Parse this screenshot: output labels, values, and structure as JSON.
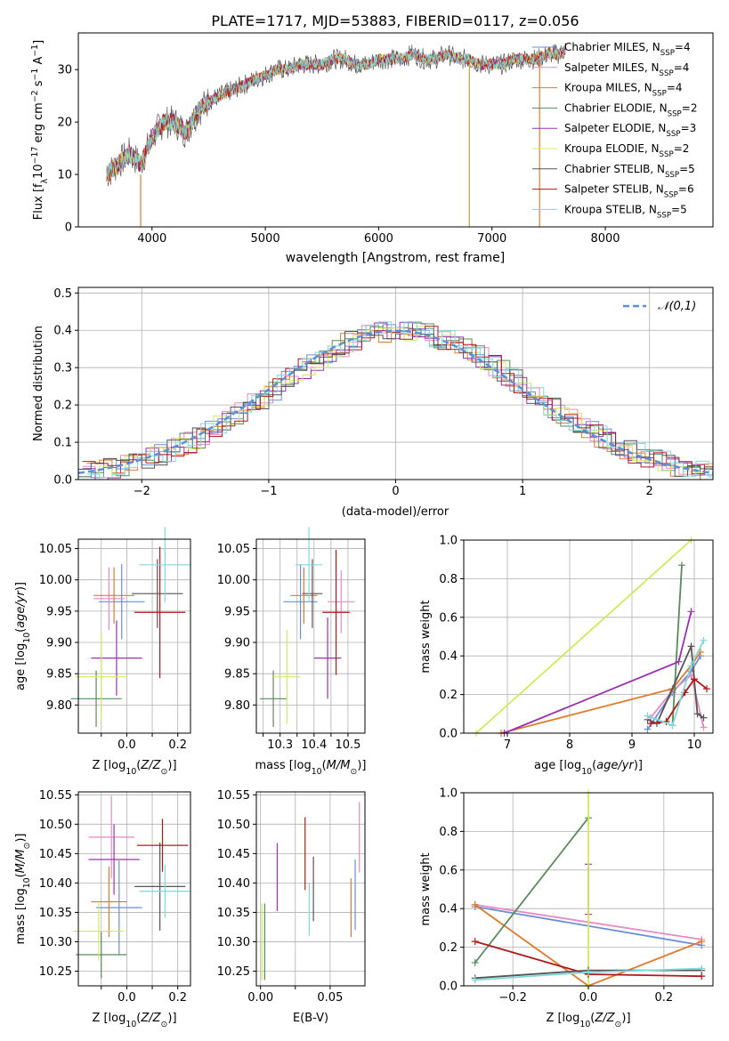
{
  "figure_title": "PLATE=1717, MJD=53883, FIBERID=0117, z=0.056",
  "legend": [
    {
      "label": "Chabrier MILES, N_SSP=4",
      "base": "Chabrier MILES, N",
      "sub": "SSP",
      "suffix": "=4",
      "color": "#6a8ed8"
    },
    {
      "label": "Salpeter MILES, N_SSP=4",
      "base": "Salpeter MILES, N",
      "sub": "SSP",
      "suffix": "=4",
      "color": "#e58ac2"
    },
    {
      "label": "Kroupa MILES, N_SSP=4",
      "base": "Kroupa MILES, N",
      "sub": "SSP",
      "suffix": "=4",
      "color": "#e07a2e"
    },
    {
      "label": "Chabrier ELODIE, N_SSP=2",
      "base": "Chabrier ELODIE, N",
      "sub": "SSP",
      "suffix": "=2",
      "color": "#5a8a5a"
    },
    {
      "label": "Salpeter ELODIE, N_SSP=3",
      "base": "Salpeter ELODIE, N",
      "sub": "SSP",
      "suffix": "=3",
      "color": "#9b30b0"
    },
    {
      "label": "Kroupa ELODIE, N_SSP=2",
      "base": "Kroupa ELODIE, N",
      "sub": "SSP",
      "suffix": "=2",
      "color": "#d4e85a"
    },
    {
      "label": "Chabrier STELIB, N_SSP=5",
      "base": "Chabrier STELIB, N",
      "sub": "SSP",
      "suffix": "=5",
      "color": "#555555"
    },
    {
      "label": "Salpeter STELIB, N_SSP=6",
      "base": "Salpeter STELIB, N",
      "sub": "SSP",
      "suffix": "=6",
      "color": "#b01818"
    },
    {
      "label": "Kroupa STELIB, N_SSP=5",
      "base": "Kroupa STELIB, N",
      "sub": "SSP",
      "suffix": "=5",
      "color": "#7fd8dc"
    }
  ],
  "chart_data": [
    {
      "id": "spectrum",
      "type": "line",
      "xlabel": "wavelength [Angstrom, rest frame]",
      "ylabel": "Flux [f_λ 10^-17 erg cm^-2 s^-1 A^-1]",
      "xlim": [
        3350,
        8950
      ],
      "ylim": [
        0,
        37
      ],
      "xticks": [
        4000,
        5000,
        6000,
        7000,
        8000
      ],
      "yticks": [
        0,
        10,
        20,
        30
      ],
      "grid": false,
      "legend_position": "lower right",
      "continuum_x": [
        3600,
        3700,
        3800,
        3900,
        4000,
        4100,
        4200,
        4300,
        4400,
        4500,
        4600,
        4700,
        4800,
        4900,
        5000,
        5100,
        5200,
        5300,
        5400,
        5500,
        5600,
        5700,
        5800,
        5900,
        6000,
        6100,
        6200,
        6300,
        6400,
        6500,
        6600,
        6700,
        6800,
        6900,
        7000,
        7100,
        7200,
        7300,
        7400,
        7500,
        7600,
        7650
      ],
      "continuum_y": [
        10,
        12,
        14,
        12,
        17,
        20,
        20,
        18,
        22,
        24,
        25,
        26,
        27,
        28,
        29,
        30,
        30,
        31,
        31,
        31,
        32,
        32,
        31,
        31,
        32,
        32,
        32,
        33,
        32,
        32,
        33,
        32,
        32,
        31,
        31,
        31,
        32,
        32,
        32,
        33,
        33,
        34
      ],
      "drop_lines": [
        {
          "x": 3900,
          "y0": 0,
          "y1": 10
        },
        {
          "x": 6800,
          "y0": 0,
          "y1": 32
        },
        {
          "x": 7420,
          "y0": 0,
          "y1": 32
        }
      ]
    },
    {
      "id": "residuals",
      "type": "histogram",
      "xlabel": "(data-model)/error",
      "ylabel": "Normed distribution",
      "xlim": [
        -2.5,
        2.5
      ],
      "ylim": [
        0,
        0.515
      ],
      "xticks": [
        -2,
        -1,
        0,
        1,
        2
      ],
      "yticks": [
        0.0,
        0.1,
        0.2,
        0.3,
        0.4,
        0.5
      ],
      "grid": true,
      "reference": {
        "name": "𝒩(0,1)",
        "mean": 0,
        "sigma": 1
      }
    },
    {
      "id": "age_vs_Z",
      "type": "scatter",
      "xlabel": "Z [log10(Z/Z⊙)]",
      "ylabel": "age [log10(age/yr)]",
      "xlim": [
        -0.19,
        0.25
      ],
      "ylim": [
        9.755,
        10.065
      ],
      "xticks": [
        -0.1,
        0.0,
        0.1,
        0.2
      ],
      "xticklabels": [
        "",
        "0.0",
        "",
        "0.2"
      ],
      "yticks": [
        9.8,
        9.85,
        9.9,
        9.95,
        10.0,
        10.05
      ],
      "grid": true,
      "points": [
        {
          "series": "Chabrier MILES",
          "x": -0.02,
          "xerr": 0.09,
          "y": 9.965,
          "yerr": 0.06
        },
        {
          "series": "Salpeter MILES",
          "x": -0.07,
          "xerr": 0.06,
          "y": 9.97,
          "yerr": 0.05
        },
        {
          "series": "Kroupa MILES",
          "x": -0.05,
          "xerr": 0.08,
          "y": 9.975,
          "yerr": 0.045
        },
        {
          "series": "Chabrier ELODIE",
          "x": -0.12,
          "xerr": 0.1,
          "y": 9.81,
          "yerr": 0.045
        },
        {
          "series": "Salpeter ELODIE",
          "x": -0.04,
          "xerr": 0.1,
          "y": 9.875,
          "yerr": 0.06
        },
        {
          "series": "Kroupa ELODIE",
          "x": -0.1,
          "xerr": 0.1,
          "y": 9.845,
          "yerr": 0.07
        },
        {
          "series": "Chabrier STELIB",
          "x": 0.12,
          "xerr": 0.1,
          "y": 9.978,
          "yerr": 0.055
        },
        {
          "series": "Salpeter STELIB",
          "x": 0.13,
          "xerr": 0.1,
          "y": 9.948,
          "yerr": 0.105
        },
        {
          "series": "Kroupa STELIB",
          "x": 0.15,
          "xerr": 0.1,
          "y": 10.024,
          "yerr": 0.06
        }
      ]
    },
    {
      "id": "age_vs_mass",
      "type": "scatter",
      "xlabel": "mass [log10(M/M⊙)]",
      "ylabel": "",
      "xlim": [
        10.23,
        10.55
      ],
      "ylim": [
        9.755,
        10.065
      ],
      "xticks": [
        10.25,
        10.3,
        10.35,
        10.4,
        10.45,
        10.5
      ],
      "xticklabels": [
        "",
        "10.3",
        "",
        "10.4",
        "",
        "10.5"
      ],
      "yticks": [
        9.8,
        9.85,
        9.9,
        9.95,
        10.0,
        10.05
      ],
      "grid": true,
      "points": [
        {
          "series": "Chabrier MILES",
          "x": 10.36,
          "xerr": 0.05,
          "y": 9.965,
          "yerr": 0.06
        },
        {
          "series": "Salpeter MILES",
          "x": 10.48,
          "xerr": 0.04,
          "y": 9.965,
          "yerr": 0.05
        },
        {
          "series": "Kroupa MILES",
          "x": 10.37,
          "xerr": 0.04,
          "y": 9.975,
          "yerr": 0.045
        },
        {
          "series": "Chabrier ELODIE",
          "x": 10.28,
          "xerr": 0.04,
          "y": 9.81,
          "yerr": 0.045
        },
        {
          "series": "Salpeter ELODIE",
          "x": 10.44,
          "xerr": 0.04,
          "y": 9.875,
          "yerr": 0.065
        },
        {
          "series": "Kroupa ELODIE",
          "x": 10.32,
          "xerr": 0.04,
          "y": 9.845,
          "yerr": 0.075
        },
        {
          "series": "Chabrier STELIB",
          "x": 10.395,
          "xerr": 0.03,
          "y": 9.978,
          "yerr": 0.055
        },
        {
          "series": "Salpeter STELIB",
          "x": 10.465,
          "xerr": 0.04,
          "y": 9.948,
          "yerr": 0.1
        },
        {
          "series": "Kroupa STELIB",
          "x": 10.385,
          "xerr": 0.04,
          "y": 10.024,
          "yerr": 0.06
        }
      ]
    },
    {
      "id": "weight_vs_age",
      "type": "line",
      "xlabel": "age [log10(age/yr)]",
      "ylabel": "mass weight",
      "xlim": [
        6.3,
        10.3
      ],
      "ylim": [
        0,
        1
      ],
      "xticks": [
        7,
        8,
        9,
        10
      ],
      "yticks": [
        0.0,
        0.2,
        0.4,
        0.6,
        0.8,
        1.0
      ],
      "grid": true,
      "series": [
        {
          "name": "Chabrier MILES",
          "x": [
            9.25,
            9.65,
            9.95,
            10.1
          ],
          "y": [
            0.02,
            0.21,
            0.32,
            0.4
          ]
        },
        {
          "name": "Salpeter MILES",
          "x": [
            9.3,
            9.65,
            9.95,
            10.15
          ],
          "y": [
            0.08,
            0.22,
            0.3,
            0.03
          ]
        },
        {
          "name": "Kroupa MILES",
          "x": [
            6.9,
            9.65,
            9.95,
            10.1
          ],
          "y": [
            0.0,
            0.23,
            0.35,
            0.42
          ]
        },
        {
          "name": "Chabrier ELODIE",
          "x": [
            9.65,
            9.8
          ],
          "y": [
            0.04,
            0.87
          ]
        },
        {
          "name": "Salpeter ELODIE",
          "x": [
            6.95,
            9.75,
            9.95
          ],
          "y": [
            0.0,
            0.37,
            0.63
          ]
        },
        {
          "name": "Kroupa ELODIE",
          "x": [
            6.5,
            9.95
          ],
          "y": [
            0.0,
            1.0
          ]
        },
        {
          "name": "Chabrier STELIB",
          "x": [
            9.25,
            9.4,
            9.95,
            10.05,
            10.15
          ],
          "y": [
            0.07,
            0.05,
            0.45,
            0.1,
            0.08
          ]
        },
        {
          "name": "Salpeter STELIB",
          "x": [
            9.3,
            9.55,
            9.85,
            10.0,
            10.2
          ],
          "y": [
            0.05,
            0.06,
            0.21,
            0.28,
            0.23
          ]
        },
        {
          "name": "Kroupa STELIB",
          "x": [
            9.25,
            9.65,
            9.95,
            10.15
          ],
          "y": [
            0.09,
            0.04,
            0.35,
            0.48
          ]
        }
      ]
    },
    {
      "id": "mass_vs_Z",
      "type": "scatter",
      "xlabel": "Z [log10(Z/Z⊙)]",
      "ylabel": "mass [log10(M/M⊙)]",
      "xlim": [
        -0.19,
        0.25
      ],
      "ylim": [
        10.225,
        10.555
      ],
      "xticks": [
        -0.1,
        0.0,
        0.1,
        0.2
      ],
      "xticklabels": [
        "",
        "0.0",
        "",
        "0.2"
      ],
      "yticks": [
        10.25,
        10.3,
        10.35,
        10.4,
        10.45,
        10.5,
        10.55
      ],
      "grid": true,
      "points": [
        {
          "series": "Chabrier MILES",
          "x": -0.03,
          "xerr": 0.09,
          "y": 10.358,
          "yerr": 0.08
        },
        {
          "series": "Salpeter MILES",
          "x": -0.06,
          "xerr": 0.09,
          "y": 10.478,
          "yerr": 0.07
        },
        {
          "series": "Kroupa MILES",
          "x": -0.07,
          "xerr": 0.07,
          "y": 10.368,
          "yerr": 0.06
        },
        {
          "series": "Chabrier ELODIE",
          "x": -0.1,
          "xerr": 0.1,
          "y": 10.278,
          "yerr": 0.04
        },
        {
          "series": "Salpeter ELODIE",
          "x": -0.05,
          "xerr": 0.1,
          "y": 10.44,
          "yerr": 0.06
        },
        {
          "series": "Kroupa ELODIE",
          "x": -0.11,
          "xerr": 0.1,
          "y": 10.318,
          "yerr": 0.05
        },
        {
          "series": "Chabrier STELIB",
          "x": 0.13,
          "xerr": 0.1,
          "y": 10.394,
          "yerr": 0.075
        },
        {
          "series": "Salpeter STELIB",
          "x": 0.14,
          "xerr": 0.1,
          "y": 10.464,
          "yerr": 0.045
        },
        {
          "series": "Kroupa STELIB",
          "x": 0.15,
          "xerr": 0.1,
          "y": 10.386,
          "yerr": 0.045
        }
      ]
    },
    {
      "id": "mass_vs_EBV",
      "type": "scatter",
      "xlabel": "E(B-V)",
      "ylabel": "",
      "xlim": [
        -0.003,
        0.075
      ],
      "ylim": [
        10.225,
        10.555
      ],
      "xticks": [
        0.0,
        0.025,
        0.05
      ],
      "xticklabels": [
        "0.00",
        "",
        "0.05"
      ],
      "yticks": [
        10.25,
        10.3,
        10.35,
        10.4,
        10.45,
        10.5,
        10.55
      ],
      "grid": true,
      "points": [
        {
          "series": "Chabrier MILES",
          "x": 0.068,
          "y": 10.38,
          "yerr": 0.06
        },
        {
          "series": "Salpeter MILES",
          "x": 0.071,
          "y": 10.478,
          "yerr": 0.06
        },
        {
          "series": "Kroupa MILES",
          "x": 0.065,
          "y": 10.358,
          "yerr": 0.05
        },
        {
          "series": "Chabrier ELODIE",
          "x": 0.003,
          "y": 10.3,
          "yerr": 0.065
        },
        {
          "series": "Salpeter ELODIE",
          "x": 0.012,
          "y": 10.41,
          "yerr": 0.058
        },
        {
          "series": "Kroupa ELODIE",
          "x": 0.001,
          "y": 10.3,
          "yerr": 0.065
        },
        {
          "series": "Chabrier STELIB",
          "x": 0.038,
          "y": 10.39,
          "yerr": 0.055
        },
        {
          "series": "Salpeter STELIB",
          "x": 0.032,
          "y": 10.45,
          "yerr": 0.062
        },
        {
          "series": "Kroupa STELIB",
          "x": 0.035,
          "y": 10.355,
          "yerr": 0.045
        }
      ]
    },
    {
      "id": "weight_vs_Z",
      "type": "line",
      "xlabel": "Z [log10(Z/Z⊙)]",
      "ylabel": "mass weight",
      "xlim": [
        -0.33,
        0.33
      ],
      "ylim": [
        0,
        1
      ],
      "xticks": [
        -0.2,
        0.0,
        0.2
      ],
      "xticklabels": [
        "−0.2",
        "0.0",
        "0.2"
      ],
      "yticks": [
        0.0,
        0.2,
        0.4,
        0.6,
        0.8,
        1.0
      ],
      "grid": true,
      "series": [
        {
          "name": "Chabrier MILES",
          "x": [
            -0.3,
            0.3
          ],
          "y": [
            0.41,
            0.21
          ]
        },
        {
          "name": "Salpeter MILES",
          "x": [
            -0.3,
            0.3
          ],
          "y": [
            0.42,
            0.24
          ]
        },
        {
          "name": "Kroupa MILES",
          "x": [
            -0.3,
            0.0,
            0.3
          ],
          "y": [
            0.42,
            0.0,
            0.23
          ]
        },
        {
          "name": "Chabrier ELODIE",
          "x": [
            -0.3,
            0.0
          ],
          "y": [
            0.12,
            0.87
          ]
        },
        {
          "name": "Salpeter ELODIE",
          "x": [
            0.0,
            0.0
          ],
          "y": [
            0.37,
            0.63
          ]
        },
        {
          "name": "Kroupa ELODIE",
          "x": [
            0.0,
            0.0
          ],
          "y": [
            0.0,
            1.0
          ]
        },
        {
          "name": "Chabrier STELIB",
          "x": [
            -0.3,
            0.0,
            0.3
          ],
          "y": [
            0.04,
            0.08,
            0.08
          ]
        },
        {
          "name": "Salpeter STELIB",
          "x": [
            -0.3,
            0.0,
            0.3
          ],
          "y": [
            0.23,
            0.06,
            0.05
          ]
        },
        {
          "name": "Kroupa STELIB",
          "x": [
            -0.3,
            0.0,
            0.3
          ],
          "y": [
            0.03,
            0.07,
            0.09
          ]
        }
      ],
      "markers_at_edges": [
        {
          "x": -0.3,
          "ys": [
            0.48,
            0.35,
            0.15,
            0.04
          ]
        },
        {
          "x": 0.3,
          "ys": [
            0.45,
            0.35,
            0.02
          ]
        }
      ]
    }
  ]
}
